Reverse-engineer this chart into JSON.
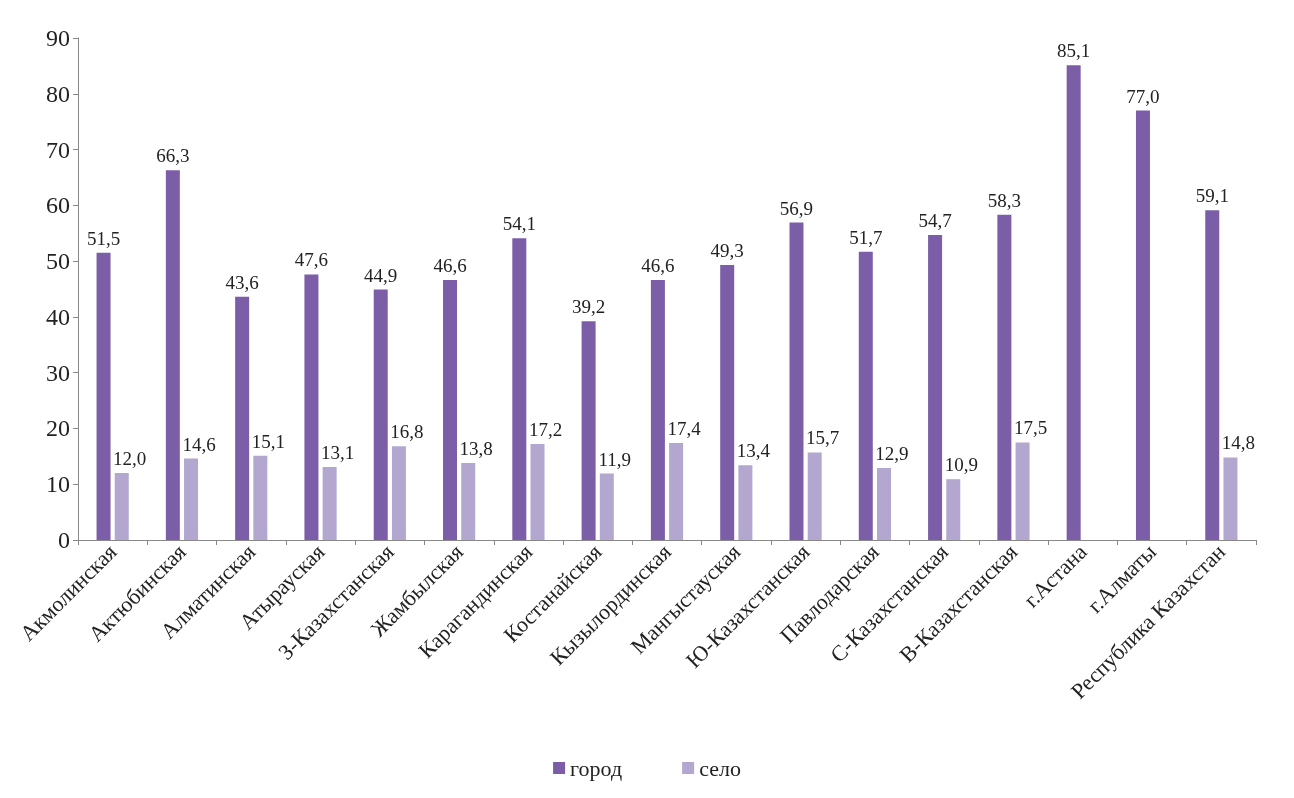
{
  "chart_data": {
    "type": "bar",
    "categories": [
      "Акмолинская",
      "Актюбинская",
      "Алматинская",
      "Атырауская",
      "З-Казахстанская",
      "Жамбылская",
      "Карагандинская",
      "Костанайская",
      "Кызылординская",
      "Мангыстауская",
      "Ю-Казахстанская",
      "Павлодарская",
      "С-Казахстанская",
      "В-Казахстанская",
      "г.Астана",
      "г.Алматы",
      "Республика Казахстан"
    ],
    "series": [
      {
        "name": "город",
        "color": "#7b5ea7",
        "values": [
          51.5,
          66.3,
          43.6,
          47.6,
          44.9,
          46.6,
          54.1,
          39.2,
          46.6,
          49.3,
          56.9,
          51.7,
          54.7,
          58.3,
          85.1,
          77.0,
          59.1
        ],
        "value_labels": [
          "51,5",
          "66,3",
          "43,6",
          "47,6",
          "44,9",
          "46,6",
          "54,1",
          "39,2",
          "46,6",
          "49,3",
          "56,9",
          "51,7",
          "54,7",
          "58,3",
          "85,1",
          "77,0",
          "59,1"
        ]
      },
      {
        "name": "село",
        "color": "#b3a6cf",
        "values": [
          12.0,
          14.6,
          15.1,
          13.1,
          16.8,
          13.8,
          17.2,
          11.9,
          17.4,
          13.4,
          15.7,
          12.9,
          10.9,
          17.5,
          null,
          null,
          14.8
        ],
        "value_labels": [
          "12,0",
          "14,6",
          "15,1",
          "13,1",
          "16,8",
          "13,8",
          "17,2",
          "11,9",
          "17,4",
          "13,4",
          "15,7",
          "12,9",
          "10,9",
          "17,5",
          null,
          null,
          "14,8"
        ]
      }
    ],
    "ylim": [
      0,
      90
    ],
    "yticks": [
      0,
      10,
      20,
      30,
      40,
      50,
      60,
      70,
      80,
      90
    ],
    "grid": false,
    "legend": "bottom"
  }
}
